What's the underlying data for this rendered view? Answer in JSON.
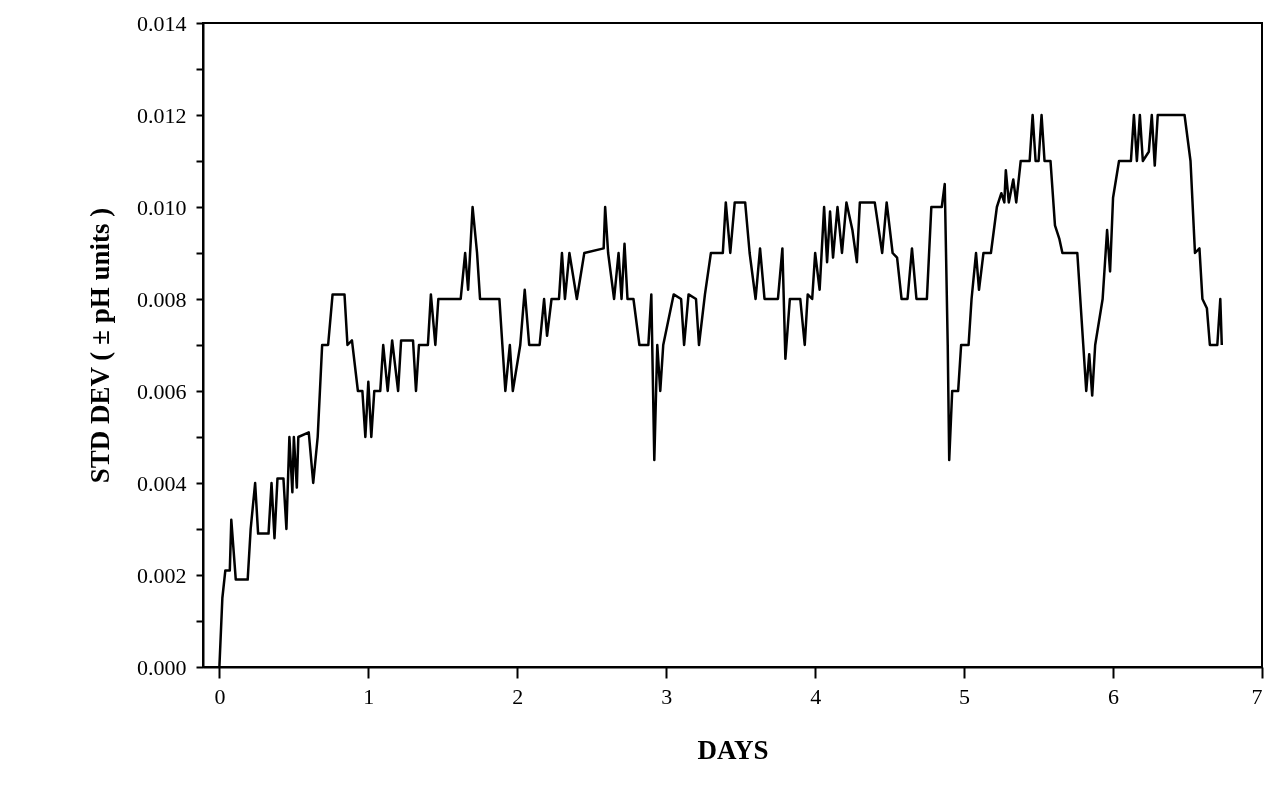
{
  "chart_data": {
    "type": "line",
    "xlabel": "DAYS",
    "ylabel": "STD DEV ( ± pH units )",
    "x": [
      0,
      0.02,
      0.04,
      0.07,
      0.08,
      0.11,
      0.19,
      0.21,
      0.24,
      0.26,
      0.33,
      0.35,
      0.37,
      0.39,
      0.43,
      0.45,
      0.47,
      0.49,
      0.5,
      0.52,
      0.53,
      0.6,
      0.63,
      0.66,
      0.69,
      0.73,
      0.76,
      0.84,
      0.86,
      0.89,
      0.93,
      0.96,
      0.98,
      1.0,
      1.02,
      1.04,
      1.08,
      1.1,
      1.13,
      1.16,
      1.2,
      1.22,
      1.3,
      1.32,
      1.34,
      1.4,
      1.42,
      1.45,
      1.47,
      1.62,
      1.65,
      1.67,
      1.7,
      1.73,
      1.75,
      1.88,
      1.9,
      1.92,
      1.95,
      1.97,
      2.02,
      2.05,
      2.08,
      2.15,
      2.18,
      2.2,
      2.23,
      2.28,
      2.3,
      2.32,
      2.35,
      2.4,
      2.45,
      2.58,
      2.59,
      2.61,
      2.65,
      2.68,
      2.7,
      2.72,
      2.74,
      2.78,
      2.82,
      2.88,
      2.9,
      2.92,
      2.94,
      2.96,
      2.98,
      3.05,
      3.1,
      3.12,
      3.15,
      3.2,
      3.22,
      3.26,
      3.3,
      3.38,
      3.4,
      3.43,
      3.46,
      3.53,
      3.56,
      3.6,
      3.63,
      3.66,
      3.75,
      3.78,
      3.8,
      3.83,
      3.9,
      3.93,
      3.95,
      3.98,
      4.0,
      4.03,
      4.06,
      4.08,
      4.1,
      4.12,
      4.15,
      4.18,
      4.21,
      4.25,
      4.28,
      4.3,
      4.4,
      4.45,
      4.48,
      4.52,
      4.55,
      4.58,
      4.62,
      4.65,
      4.68,
      4.75,
      4.78,
      4.85,
      4.87,
      4.89,
      4.9,
      4.92,
      4.96,
      4.98,
      5.03,
      5.05,
      5.08,
      5.1,
      5.13,
      5.18,
      5.22,
      5.25,
      5.27,
      5.28,
      5.3,
      5.33,
      5.35,
      5.38,
      5.44,
      5.46,
      5.48,
      5.5,
      5.52,
      5.54,
      5.58,
      5.61,
      5.64,
      5.66,
      5.76,
      5.8,
      5.82,
      5.84,
      5.86,
      5.88,
      5.93,
      5.96,
      5.98,
      6.0,
      6.04,
      6.12,
      6.14,
      6.16,
      6.18,
      6.2,
      6.24,
      6.26,
      6.28,
      6.3,
      6.36,
      6.48,
      6.52,
      6.55,
      6.58,
      6.6,
      6.63,
      6.65,
      6.7,
      6.72,
      6.73
    ],
    "series": [
      {
        "color": "#000000",
        "values": [
          0,
          0.0015,
          0.0021,
          0.0021,
          0.0032,
          0.0019,
          0.0019,
          0.003,
          0.004,
          0.0029,
          0.0029,
          0.004,
          0.0028,
          0.0041,
          0.0041,
          0.003,
          0.005,
          0.0038,
          0.005,
          0.0039,
          0.005,
          0.0051,
          0.004,
          0.005,
          0.007,
          0.007,
          0.0081,
          0.0081,
          0.007,
          0.0071,
          0.006,
          0.006,
          0.005,
          0.0062,
          0.005,
          0.006,
          0.006,
          0.007,
          0.006,
          0.0071,
          0.006,
          0.0071,
          0.0071,
          0.006,
          0.007,
          0.007,
          0.0081,
          0.007,
          0.008,
          0.008,
          0.009,
          0.0082,
          0.01,
          0.009,
          0.008,
          0.008,
          0.007,
          0.006,
          0.007,
          0.006,
          0.007,
          0.0082,
          0.007,
          0.007,
          0.008,
          0.0072,
          0.008,
          0.008,
          0.009,
          0.008,
          0.009,
          0.008,
          0.009,
          0.0091,
          0.01,
          0.009,
          0.008,
          0.009,
          0.008,
          0.0092,
          0.008,
          0.008,
          0.007,
          0.007,
          0.0081,
          0.0045,
          0.007,
          0.006,
          0.007,
          0.0081,
          0.008,
          0.007,
          0.0081,
          0.008,
          0.007,
          0.0081,
          0.009,
          0.009,
          0.0101,
          0.009,
          0.0101,
          0.0101,
          0.009,
          0.008,
          0.0091,
          0.008,
          0.008,
          0.0091,
          0.0067,
          0.008,
          0.008,
          0.007,
          0.0081,
          0.008,
          0.009,
          0.0082,
          0.01,
          0.0088,
          0.0099,
          0.0089,
          0.01,
          0.009,
          0.0101,
          0.0095,
          0.0088,
          0.0101,
          0.0101,
          0.009,
          0.0101,
          0.009,
          0.0089,
          0.008,
          0.008,
          0.0091,
          0.008,
          0.008,
          0.01,
          0.01,
          0.0105,
          0.007,
          0.0045,
          0.006,
          0.006,
          0.007,
          0.007,
          0.008,
          0.009,
          0.0082,
          0.009,
          0.009,
          0.01,
          0.0103,
          0.0101,
          0.0108,
          0.0101,
          0.0106,
          0.0101,
          0.011,
          0.011,
          0.012,
          0.011,
          0.011,
          0.012,
          0.011,
          0.011,
          0.0096,
          0.0093,
          0.009,
          0.009,
          0.007,
          0.006,
          0.0068,
          0.0059,
          0.007,
          0.008,
          0.0095,
          0.0086,
          0.0102,
          0.011,
          0.011,
          0.012,
          0.011,
          0.012,
          0.011,
          0.0112,
          0.012,
          0.0109,
          0.012,
          0.012,
          0.012,
          0.011,
          0.009,
          0.0091,
          0.008,
          0.0078,
          0.007,
          0.007,
          0.008,
          0.007
        ]
      }
    ],
    "xlim": [
      -0.11,
      7
    ],
    "xticks": [
      0,
      1,
      2,
      3,
      4,
      5,
      6,
      7
    ],
    "ylim": [
      0,
      0.014
    ],
    "yticks": [
      {
        "value": 0,
        "label": "0.000"
      },
      {
        "value": 0.001,
        "label": null
      },
      {
        "value": 0.002,
        "label": "0.002"
      },
      {
        "value": 0.003,
        "label": null
      },
      {
        "value": 0.004,
        "label": "0.004"
      },
      {
        "value": 0.005,
        "label": null
      },
      {
        "value": 0.006,
        "label": "0.006"
      },
      {
        "value": 0.007,
        "label": null
      },
      {
        "value": 0.008,
        "label": "0.008"
      },
      {
        "value": 0.009,
        "label": null
      },
      {
        "value": 0.01,
        "label": "0.010"
      },
      {
        "value": 0.011,
        "label": null
      },
      {
        "value": 0.012,
        "label": "0.012"
      },
      {
        "value": 0.013,
        "label": null
      },
      {
        "value": 0.014,
        "label": "0.014"
      }
    ]
  }
}
